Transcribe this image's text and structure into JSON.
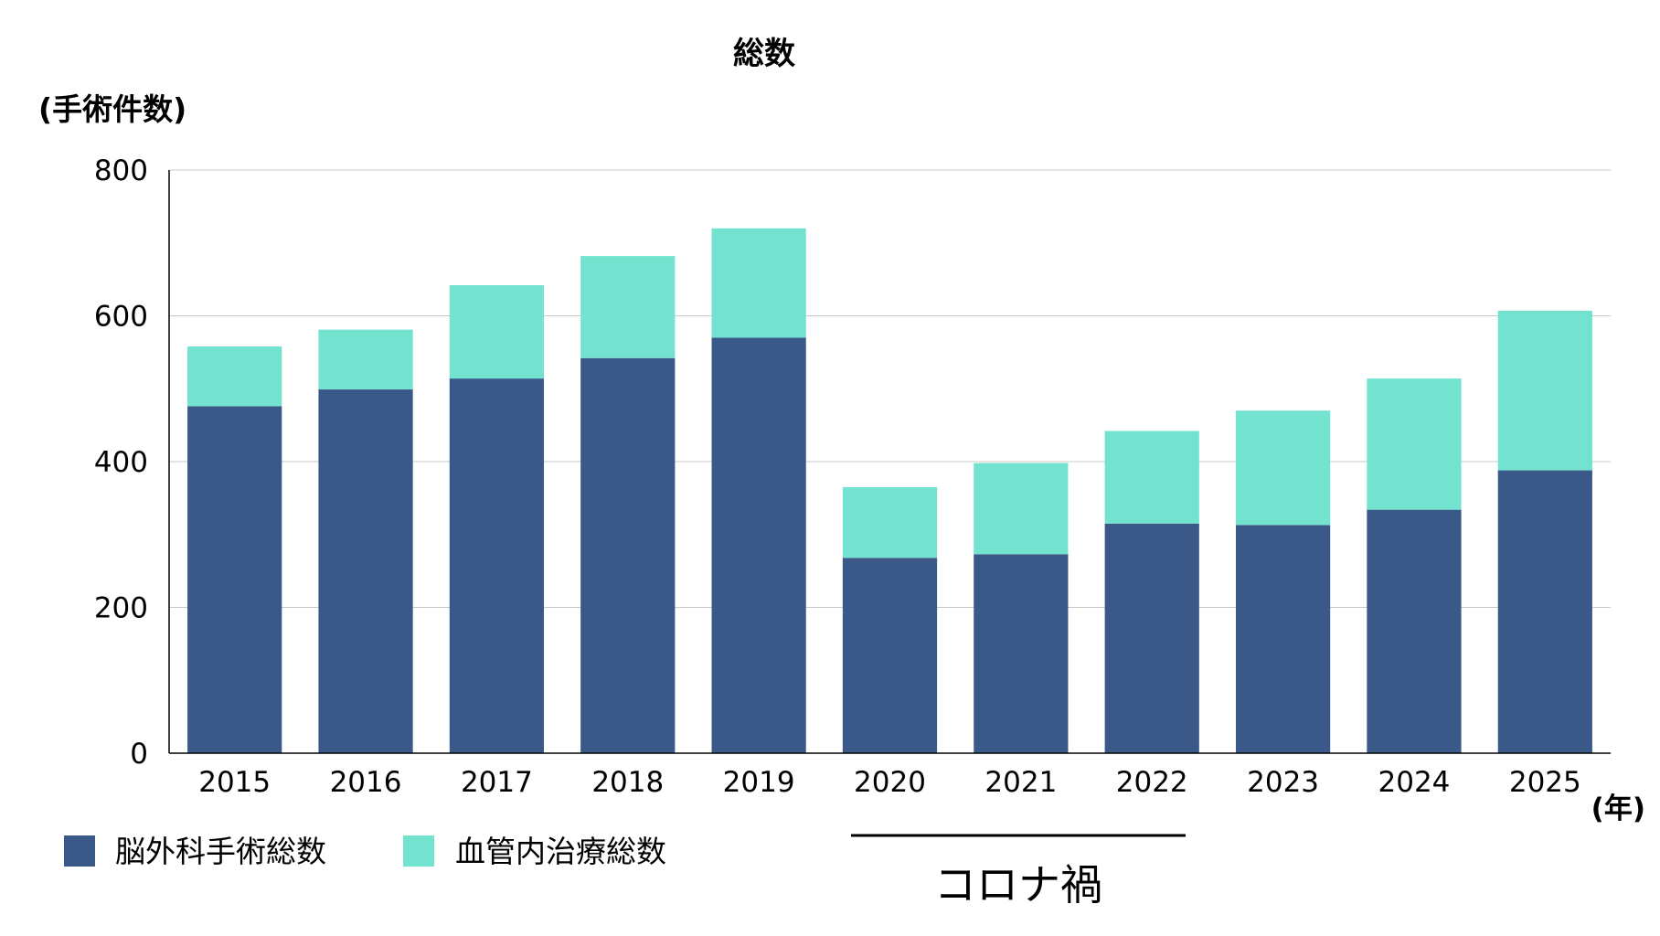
{
  "chart_data": {
    "type": "bar",
    "stacked": true,
    "title": "総数",
    "ylabel": "(手術件数)",
    "xlabel": "(年)",
    "categories": [
      "2015",
      "2016",
      "2017",
      "2018",
      "2019",
      "2020",
      "2021",
      "2022",
      "2023",
      "2024",
      "2025"
    ],
    "series": [
      {
        "name": "脳外科手術総数",
        "color": "#3b5988",
        "values": [
          476,
          499,
          514,
          542,
          570,
          268,
          273,
          315,
          313,
          334,
          388
        ]
      },
      {
        "name": "血管内治療総数",
        "color": "#73e3d0",
        "values": [
          82,
          82,
          128,
          140,
          150,
          97,
          125,
          127,
          157,
          180,
          219
        ]
      }
    ],
    "ylim": [
      0,
      800
    ],
    "yticks": [
      0,
      200,
      400,
      600,
      800
    ],
    "grid": true,
    "legend_position": "bottom-left",
    "annotation": {
      "text": "コロナ禍",
      "span": [
        "2020",
        "2022"
      ]
    }
  }
}
